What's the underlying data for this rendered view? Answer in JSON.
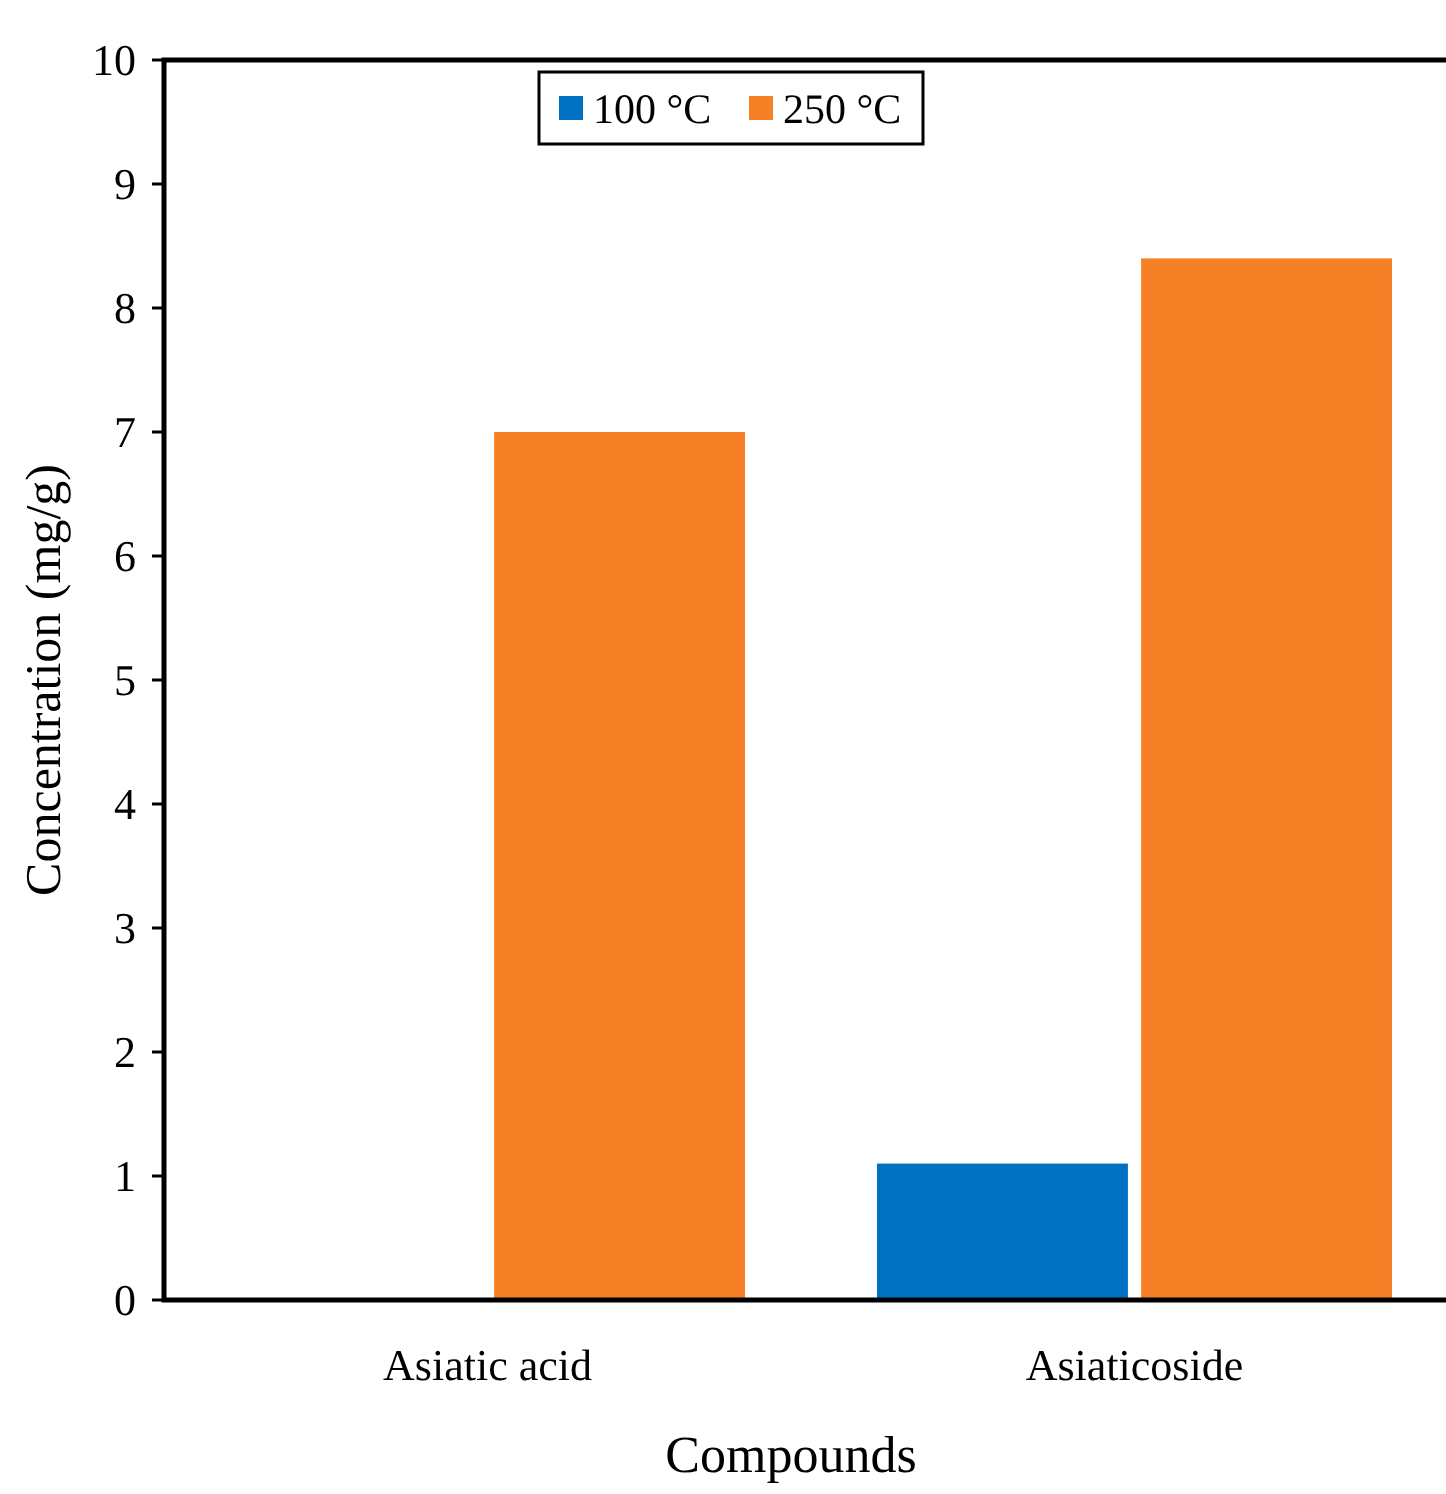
{
  "chart_data": {
    "type": "bar",
    "xlabel": "Compounds",
    "ylabel": "Concentration (mg/g)",
    "categories": [
      "Asiatic acid",
      "Asiaticoside"
    ],
    "series": [
      {
        "name": "100 °C",
        "color": "#0070c0",
        "values": [
          0,
          1.1
        ]
      },
      {
        "name": "250 °C",
        "color": "#f58025",
        "values": [
          7.0,
          8.4
        ]
      }
    ],
    "ylim": [
      0,
      10
    ],
    "yticks": [
      0,
      1,
      2,
      3,
      4,
      5,
      6,
      7,
      8,
      9,
      10
    ],
    "grid": false,
    "legend": "top"
  }
}
